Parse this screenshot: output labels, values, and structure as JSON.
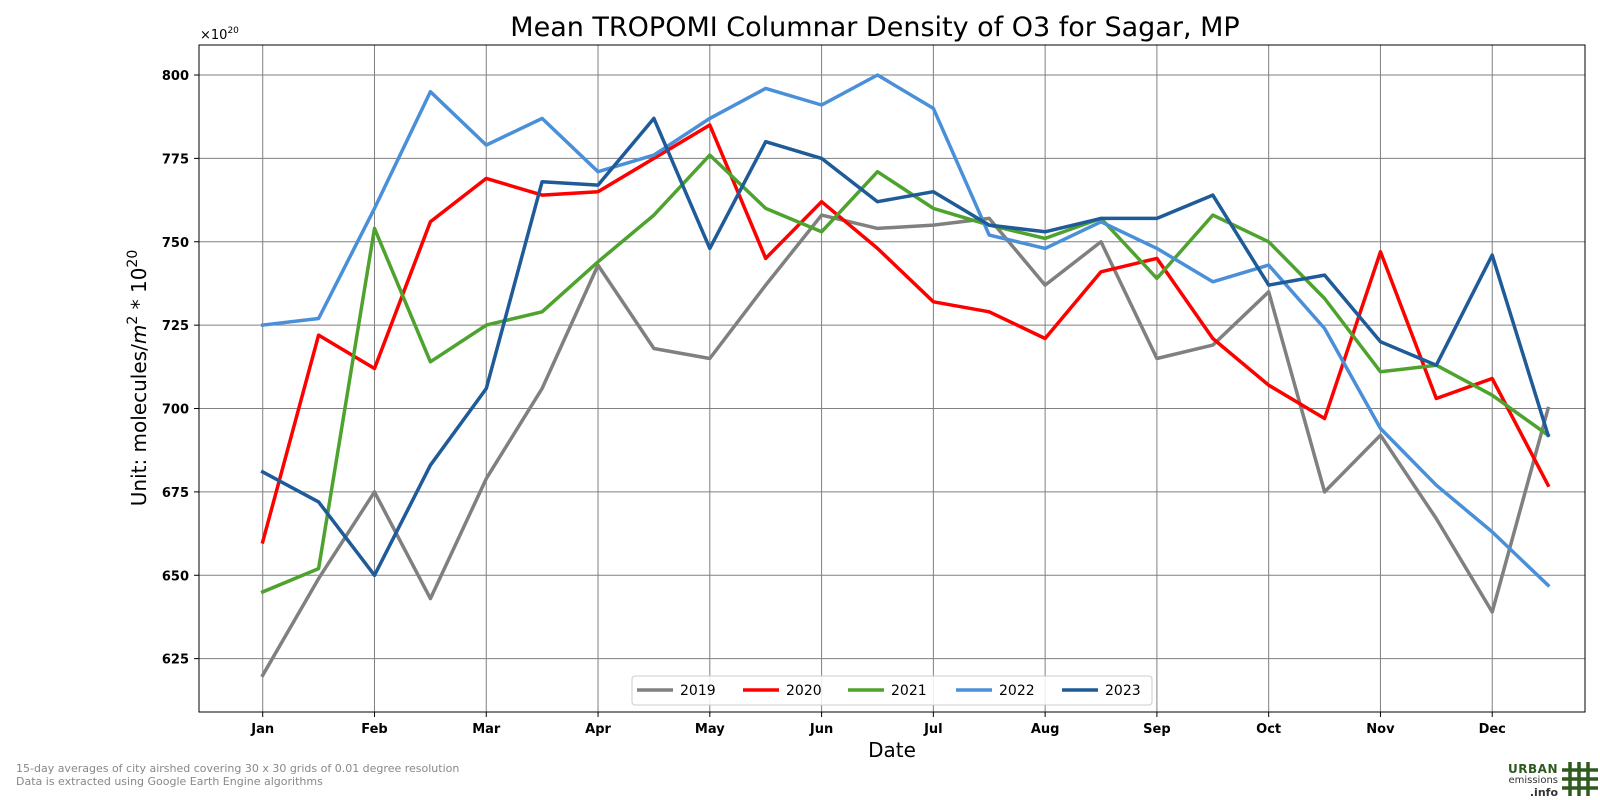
{
  "chart_data": {
    "type": "line",
    "title": "Mean TROPOMI Columnar Density of O3 for Sagar, MP",
    "xlabel": "Date",
    "ylabel_text": "Unit: molecules/",
    "ylabel_m": "m",
    "ylabel_exp2": "2",
    "ylabel_mult": " * 10",
    "ylabel_exp20": "20",
    "offset_base": "×10",
    "offset_exp": "20",
    "ylim": [
      609,
      809
    ],
    "yticks": [
      625,
      650,
      675,
      700,
      725,
      750,
      775,
      800
    ],
    "x_tick_labels": [
      "Jan",
      "Feb",
      "Mar",
      "Apr",
      "May",
      "Jun",
      "Jul",
      "Aug",
      "Sep",
      "Oct",
      "Nov",
      "Dec"
    ],
    "x": [
      0,
      0.5,
      1,
      1.5,
      2,
      2.5,
      3,
      3.5,
      4,
      4.5,
      5,
      5.5,
      6,
      6.5,
      7,
      7.5,
      8,
      8.5,
      9,
      9.5,
      10,
      10.5,
      11,
      11.5
    ],
    "xlim": [
      -0.57,
      11.83
    ],
    "grid": true,
    "legend_position": "bottom-center",
    "series": [
      {
        "name": "2019",
        "color": "#808080",
        "values": [
          620,
          649,
          675,
          643,
          679,
          706,
          743,
          718,
          715,
          737,
          758,
          754,
          755,
          757,
          737,
          750,
          715,
          719,
          735,
          675,
          692,
          667,
          639,
          700
        ]
      },
      {
        "name": "2020",
        "color": "#ff0000",
        "values": [
          660,
          722,
          712,
          756,
          769,
          764,
          765,
          775,
          785,
          745,
          762,
          748,
          732,
          729,
          721,
          741,
          745,
          721,
          707,
          697,
          747,
          703,
          709,
          677
        ]
      },
      {
        "name": "2021",
        "color": "#4da32e",
        "values": [
          645,
          652,
          754,
          714,
          725,
          729,
          744,
          758,
          776,
          760,
          753,
          771,
          760,
          755,
          751,
          757,
          739,
          758,
          750,
          733,
          711,
          713,
          704,
          692
        ]
      },
      {
        "name": "2022",
        "color": "#4a90d9",
        "values": [
          725,
          727,
          760,
          795,
          779,
          787,
          771,
          776,
          787,
          796,
          791,
          800,
          790,
          752,
          748,
          756,
          748,
          738,
          743,
          724,
          694,
          677,
          663,
          647
        ]
      },
      {
        "name": "2023",
        "color": "#1f5b99",
        "values": [
          681,
          672,
          650,
          683,
          706,
          768,
          767,
          787,
          748,
          780,
          775,
          762,
          765,
          755,
          753,
          757,
          757,
          764,
          737,
          740,
          720,
          713,
          746,
          692
        ]
      }
    ]
  },
  "footnotes": {
    "line1": "15-day averages of city airshed covering 30 x 30 grids of 0.01 degree resolution",
    "line2": "Data is extracted using Google Earth Engine algorithms"
  },
  "logo": {
    "line1": "URBAN",
    "line2": "emissions",
    "line3": ".info",
    "color_line1": "#2e5a1f",
    "color_line2": "#333333",
    "color_grid": "#2e5a1f",
    "icon": "hash-grid-icon"
  }
}
